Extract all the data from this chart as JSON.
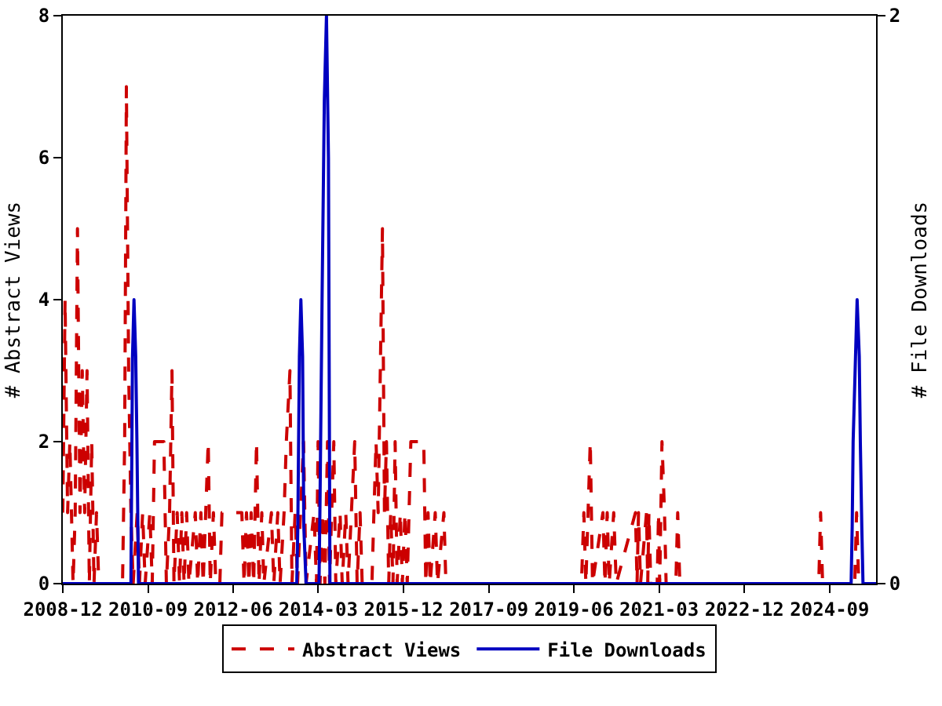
{
  "chart_data": {
    "type": "line",
    "ylabel": "# Abstract Views",
    "y2label": "# File Downloads",
    "legend": "bottom",
    "xlim": [
      "2008-12-01",
      "2025-08-15"
    ],
    "xticks": [
      "2008-12",
      "2010-09",
      "2012-06",
      "2014-03",
      "2015-12",
      "2017-09",
      "2019-06",
      "2021-03",
      "2022-12",
      "2024-09"
    ],
    "ylim": [
      0,
      8
    ],
    "yticks": [
      0,
      2,
      4,
      6,
      8
    ],
    "y2lim": [
      0,
      2
    ],
    "y2ticks": [
      0,
      2
    ],
    "series": [
      {
        "name": "Abstract Views",
        "color": "#cc0000",
        "line_style": "dashed",
        "x": [
          "2008-12-01",
          "2008-12-18",
          "2009-01-06",
          "2009-01-23",
          "2009-02-16",
          "2009-03-04",
          "2009-03-21",
          "2009-04-09",
          "2009-04-26",
          "2009-05-14",
          "2009-06-01",
          "2009-06-18",
          "2009-07-06",
          "2009-07-23",
          "2009-08-11",
          "2009-08-28",
          "2010-02-22",
          "2010-03-10",
          "2010-03-23",
          "2010-04-09",
          "2010-04-26",
          "2010-05-13",
          "2010-06-12",
          "2010-06-29",
          "2010-07-23",
          "2010-08-11",
          "2010-09-15",
          "2010-10-03",
          "2010-10-20",
          "2010-12-29",
          "2011-01-17",
          "2011-02-10",
          "2011-02-28",
          "2011-03-15",
          "2011-04-08",
          "2011-04-26",
          "2011-05-13",
          "2011-05-30",
          "2011-06-18",
          "2011-07-05",
          "2011-08-22",
          "2011-09-09",
          "2011-10-03",
          "2011-10-20",
          "2011-11-27",
          "2011-12-12",
          "2012-01-05",
          "2012-01-23",
          "2012-02-22",
          "2012-03-09",
          "2012-08-05",
          "2012-08-22",
          "2012-09-09",
          "2012-09-27",
          "2012-10-14",
          "2012-11-02",
          "2012-11-23",
          "2012-12-12",
          "2013-01-02",
          "2013-01-17",
          "2013-03-15",
          "2013-04-02",
          "2013-05-02",
          "2013-05-19",
          "2013-06-18",
          "2013-07-05",
          "2013-08-01",
          "2013-08-16",
          "2013-09-09",
          "2013-09-27",
          "2013-11-11",
          "2013-11-30",
          "2014-01-29",
          "2014-02-16",
          "2014-02-28",
          "2014-03-15",
          "2014-04-02",
          "2014-04-20",
          "2014-05-10",
          "2014-05-25",
          "2014-06-10",
          "2014-06-26",
          "2014-07-11",
          "2014-08-12",
          "2014-08-28",
          "2014-09-24",
          "2014-10-11",
          "2014-11-30",
          "2014-12-18",
          "2015-01-09",
          "2015-01-25",
          "2015-04-08",
          "2015-04-23",
          "2015-05-09",
          "2015-05-25",
          "2015-06-26",
          "2015-07-11",
          "2015-07-26",
          "2015-08-12",
          "2015-08-27",
          "2015-09-13",
          "2015-09-29",
          "2015-10-14",
          "2015-11-07",
          "2015-11-22",
          "2015-12-12",
          "2015-12-29",
          "2016-01-25",
          "2016-05-01",
          "2016-05-16",
          "2016-06-02",
          "2016-06-18",
          "2016-07-26",
          "2016-08-12",
          "2016-09-29",
          "2016-10-14",
          "2019-07-28",
          "2019-08-15",
          "2019-08-30",
          "2019-10-02",
          "2019-10-19",
          "2020-01-05",
          "2020-01-20",
          "2020-02-06",
          "2020-02-21",
          "2020-03-26",
          "2020-04-14",
          "2020-09-05",
          "2020-09-17",
          "2020-09-28",
          "2020-10-13",
          "2020-11-27",
          "2020-12-06",
          "2020-12-15",
          "2020-12-29",
          "2021-02-15",
          "2021-02-25",
          "2021-03-06",
          "2021-03-23",
          "2021-04-11",
          "2021-04-23",
          "2021-07-05",
          "2021-07-19",
          "2021-08-04",
          "2024-06-11",
          "2024-06-25",
          "2024-07-10",
          "2025-03-08",
          "2025-03-22",
          "2025-04-07",
          "2025-08-15"
        ],
        "values": [
          1,
          4,
          1,
          2,
          0,
          1,
          5,
          1,
          3,
          1,
          3,
          0,
          2,
          0,
          1,
          0,
          0,
          2,
          7,
          3,
          1,
          0,
          1,
          0,
          1,
          0,
          1,
          0,
          2,
          2,
          0,
          1,
          3,
          0,
          1,
          0,
          1,
          0,
          1,
          0,
          1,
          0,
          1,
          0,
          2,
          0,
          1,
          0,
          0,
          1,
          1,
          0,
          1,
          0,
          1,
          0,
          2,
          0,
          1,
          0,
          1,
          0,
          1,
          0,
          1,
          2,
          3,
          0,
          1,
          0,
          2,
          0,
          1,
          0,
          2,
          0,
          1,
          0,
          2,
          0,
          1,
          2,
          0,
          1,
          0,
          1,
          0,
          2,
          0,
          1,
          0,
          0,
          1,
          2,
          1,
          5,
          1,
          2,
          0,
          1,
          0,
          2,
          0,
          1,
          0,
          1,
          0,
          2,
          2,
          0,
          1,
          0,
          1,
          0,
          1,
          0,
          0,
          1,
          0,
          2,
          0,
          1,
          0,
          1,
          0,
          1,
          0,
          1,
          0,
          1,
          0,
          1,
          0,
          1,
          0,
          0,
          1,
          0,
          2,
          1,
          0,
          0,
          1,
          0,
          0,
          1,
          0,
          0,
          1,
          0,
          0
        ]
      },
      {
        "name": "File Downloads",
        "color": "#0000c0",
        "line_style": "solid",
        "axis": "y2",
        "x": [
          "2008-12-01",
          "2010-04-26",
          "2010-05-08",
          "2010-05-19",
          "2010-06-01",
          "2010-06-10",
          "2010-06-22",
          "2013-09-21",
          "2013-09-29",
          "2013-10-11",
          "2013-10-22",
          "2013-11-04",
          "2013-11-13",
          "2013-11-30",
          "2014-03-07",
          "2014-03-15",
          "2014-03-30",
          "2014-04-16",
          "2014-05-02",
          "2014-05-17",
          "2014-05-28",
          "2025-02-09",
          "2025-02-17",
          "2025-02-24",
          "2025-03-14",
          "2025-03-26",
          "2025-04-11",
          "2025-04-19",
          "2025-04-30",
          "2025-05-09",
          "2025-08-15"
        ],
        "values": [
          0,
          0,
          0.8,
          1,
          0.8,
          0.5,
          0,
          0,
          0.2,
          0.8,
          1,
          0.8,
          0.2,
          0,
          0,
          0.3,
          1,
          1.7,
          2,
          1.5,
          0,
          0,
          0.2,
          0.5,
          0.8,
          1,
          0.8,
          0.5,
          0.2,
          0,
          0
        ]
      }
    ]
  }
}
